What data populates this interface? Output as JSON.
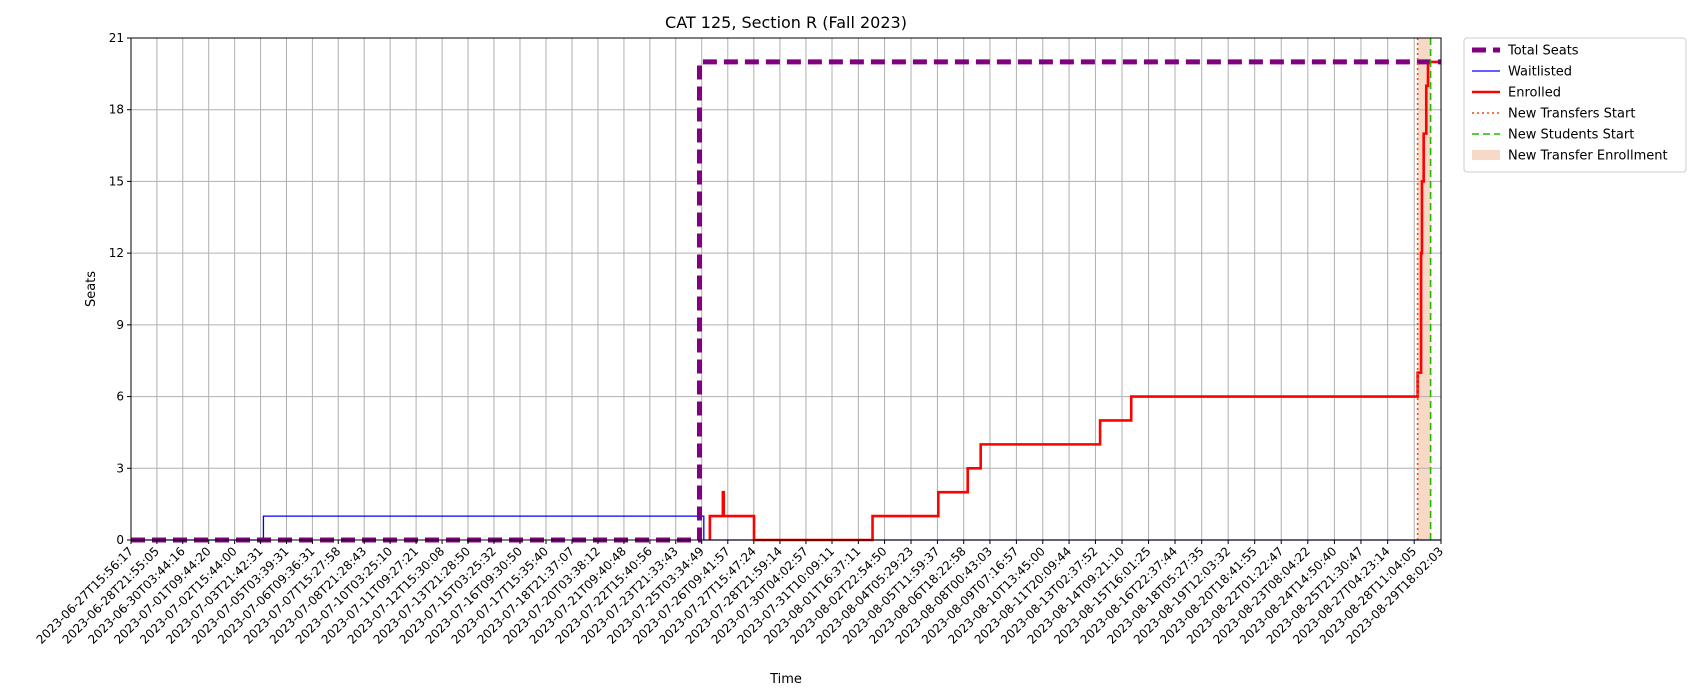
{
  "chart_data": {
    "type": "line",
    "title": "CAT 125, Section R (Fall 2023)",
    "xlabel": "Time",
    "ylabel": "Seats",
    "ylim": [
      0,
      21
    ],
    "yticks": [
      0,
      3,
      6,
      9,
      12,
      15,
      18,
      21
    ],
    "grid": true,
    "legend_position": "outside-top-right",
    "xtick_labels": [
      "2023-06-27T15:56:17",
      "2023-06-28T21:55:05",
      "2023-06-30T03:44:16",
      "2023-07-01T09:44:20",
      "2023-07-02T15:44:00",
      "2023-07-03T21:42:31",
      "2023-07-05T03:39:31",
      "2023-07-06T09:36:31",
      "2023-07-07T15:27:58",
      "2023-07-08T21:28:43",
      "2023-07-10T03:25:10",
      "2023-07-11T09:27:21",
      "2023-07-12T15:30:08",
      "2023-07-13T21:28:50",
      "2023-07-15T03:25:32",
      "2023-07-16T09:30:50",
      "2023-07-17T15:35:40",
      "2023-07-18T21:37:07",
      "2023-07-20T03:38:12",
      "2023-07-21T09:40:48",
      "2023-07-22T15:40:56",
      "2023-07-23T21:33:43",
      "2023-07-25T03:34:49",
      "2023-07-26T09:41:57",
      "2023-07-27T15:47:24",
      "2023-07-28T21:59:14",
      "2023-07-30T04:02:57",
      "2023-07-31T10:09:11",
      "2023-08-01T16:37:11",
      "2023-08-02T22:54:50",
      "2023-08-04T05:29:23",
      "2023-08-05T11:59:37",
      "2023-08-06T18:22:58",
      "2023-08-08T00:43:03",
      "2023-08-09T07:16:57",
      "2023-08-10T13:45:00",
      "2023-08-11T20:09:44",
      "2023-08-13T02:37:52",
      "2023-08-14T09:21:10",
      "2023-08-15T16:01:25",
      "2023-08-16T22:37:44",
      "2023-08-18T05:27:35",
      "2023-08-19T12:03:32",
      "2023-08-20T18:41:55",
      "2023-08-22T01:22:47",
      "2023-08-23T08:04:22",
      "2023-08-24T14:50:40",
      "2023-08-25T21:30:47",
      "2023-08-27T04:23:14",
      "2023-08-28T11:04:05",
      "2023-08-29T18:02:03"
    ],
    "x_range": [
      "2023-06-27T15:56:17",
      "2023-08-29T18:02:03"
    ],
    "series": [
      {
        "name": "Total Seats",
        "color": "#800080",
        "style": "dashed-thick",
        "points": [
          [
            "2023-06-27T15:56:17",
            0
          ],
          [
            "2023-07-25T01:00:00",
            0
          ],
          [
            "2023-07-25T01:00:00",
            20
          ],
          [
            "2023-08-29T18:02:03",
            20
          ]
        ]
      },
      {
        "name": "Waitlisted",
        "color": "#0000ff",
        "style": "solid-thin",
        "points": [
          [
            "2023-06-27T15:56:17",
            0
          ],
          [
            "2023-07-04T01:00:00",
            0
          ],
          [
            "2023-07-04T01:00:00",
            1
          ],
          [
            "2023-07-25T06:00:00",
            1
          ],
          [
            "2023-07-25T06:00:00",
            0
          ],
          [
            "2023-08-29T18:02:03",
            0
          ]
        ]
      },
      {
        "name": "Enrolled",
        "color": "#ff0000",
        "style": "solid-thick",
        "points": [
          [
            "2023-07-25T13:00:00",
            0
          ],
          [
            "2023-07-25T13:00:00",
            1
          ],
          [
            "2023-07-26T04:00:00",
            1
          ],
          [
            "2023-07-26T04:00:00",
            2
          ],
          [
            "2023-07-26T05:00:00",
            2
          ],
          [
            "2023-07-26T05:00:00",
            1
          ],
          [
            "2023-07-27T16:00:00",
            1
          ],
          [
            "2023-07-27T16:00:00",
            0
          ],
          [
            "2023-08-02T09:00:00",
            0
          ],
          [
            "2023-08-02T09:00:00",
            1
          ],
          [
            "2023-08-05T13:00:00",
            1
          ],
          [
            "2023-08-05T13:00:00",
            2
          ],
          [
            "2023-08-06T23:00:00",
            2
          ],
          [
            "2023-08-06T23:00:00",
            3
          ],
          [
            "2023-08-07T14:00:00",
            3
          ],
          [
            "2023-08-07T14:00:00",
            4
          ],
          [
            "2023-08-13T08:00:00",
            4
          ],
          [
            "2023-08-13T08:00:00",
            5
          ],
          [
            "2023-08-14T20:00:00",
            5
          ],
          [
            "2023-08-14T20:00:00",
            6
          ],
          [
            "2023-08-28T15:00:00",
            6
          ],
          [
            "2023-08-28T15:00:00",
            7
          ],
          [
            "2023-08-28T19:00:00",
            7
          ],
          [
            "2023-08-28T19:00:00",
            12
          ],
          [
            "2023-08-28T20:00:00",
            12
          ],
          [
            "2023-08-28T20:00:00",
            15
          ],
          [
            "2023-08-28T22:00:00",
            15
          ],
          [
            "2023-08-28T22:00:00",
            17
          ],
          [
            "2023-08-29T01:00:00",
            17
          ],
          [
            "2023-08-29T01:00:00",
            19
          ],
          [
            "2023-08-29T03:00:00",
            19
          ],
          [
            "2023-08-29T03:00:00",
            20
          ],
          [
            "2023-08-29T18:02:03",
            20
          ]
        ]
      }
    ],
    "vlines": [
      {
        "name": "New Transfers Start",
        "x": "2023-08-28T15:00:00",
        "color": "#ff4500",
        "style": "dotted"
      },
      {
        "name": "New Students Start",
        "x": "2023-08-29T06:00:00",
        "color": "#22bb00",
        "style": "dashed"
      }
    ],
    "spans": [
      {
        "name": "New Transfer Enrollment",
        "x_start": "2023-08-28T15:00:00",
        "x_end": "2023-08-29T06:00:00",
        "color": "#f4c9b0"
      }
    ],
    "legend": [
      {
        "label": "Total Seats",
        "color": "#800080",
        "style": "dashed-thick"
      },
      {
        "label": "Waitlisted",
        "color": "#0000ff",
        "style": "solid-thin"
      },
      {
        "label": "Enrolled",
        "color": "#ff0000",
        "style": "solid-thick"
      },
      {
        "label": "New Transfers Start",
        "color": "#ff4500",
        "style": "dotted"
      },
      {
        "label": "New Students Start",
        "color": "#22bb00",
        "style": "dashed"
      },
      {
        "label": "New Transfer Enrollment",
        "color": "#f4c9b0",
        "style": "patch"
      }
    ]
  }
}
